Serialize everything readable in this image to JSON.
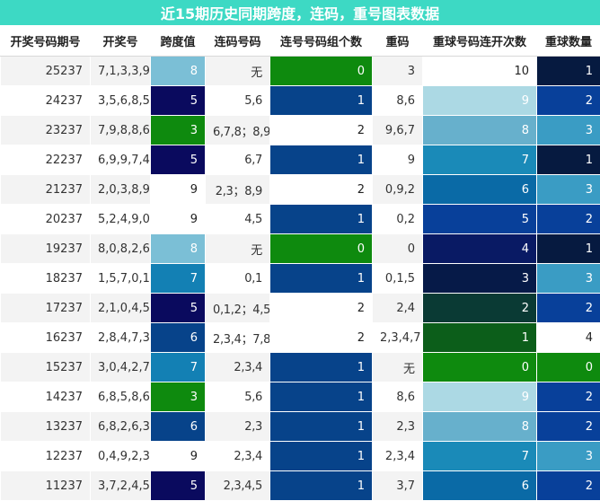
{
  "title": "近15期历史同期跨度，连码，重号图表数据",
  "headers": [
    "开奖号码期号",
    "开奖号",
    "跨度值",
    "连码号码",
    "连号号码组个数",
    "重码",
    "重球号码连开次数",
    "重球数量"
  ],
  "rows": [
    {
      "issue": "25237",
      "nums": "7,1,3,3,9",
      "span": "8",
      "lian": "无",
      "lian_count": "0",
      "chong": "3",
      "chong_times": "10",
      "chong_count": "1"
    },
    {
      "issue": "24237",
      "nums": "3,5,6,8,5",
      "span": "5",
      "lian": "5,6",
      "lian_count": "1",
      "chong": "8,6",
      "chong_times": "9",
      "chong_count": "2"
    },
    {
      "issue": "23237",
      "nums": "7,9,8,8,6",
      "span": "3",
      "lian": "6,7,8；8,9",
      "lian_count": "2",
      "chong": "9,6,7",
      "chong_times": "8",
      "chong_count": "3"
    },
    {
      "issue": "22237",
      "nums": "6,9,9,7,4",
      "span": "5",
      "lian": "6,7",
      "lian_count": "1",
      "chong": "9",
      "chong_times": "7",
      "chong_count": "1"
    },
    {
      "issue": "21237",
      "nums": "2,0,3,8,9",
      "span": "9",
      "lian": "2,3；8,9",
      "lian_count": "2",
      "chong": "0,9,2",
      "chong_times": "6",
      "chong_count": "3"
    },
    {
      "issue": "20237",
      "nums": "5,2,4,9,0",
      "span": "9",
      "lian": "4,5",
      "lian_count": "1",
      "chong": "0,2",
      "chong_times": "5",
      "chong_count": "2"
    },
    {
      "issue": "19237",
      "nums": "8,0,8,2,6",
      "span": "8",
      "lian": "无",
      "lian_count": "0",
      "chong": "0",
      "chong_times": "4",
      "chong_count": "1"
    },
    {
      "issue": "18237",
      "nums": "1,5,7,0,1",
      "span": "7",
      "lian": "0,1",
      "lian_count": "1",
      "chong": "0,1,5",
      "chong_times": "3",
      "chong_count": "3"
    },
    {
      "issue": "17237",
      "nums": "2,1,0,4,5",
      "span": "5",
      "lian": "0,1,2；4,5",
      "lian_count": "2",
      "chong": "2,4",
      "chong_times": "2",
      "chong_count": "2"
    },
    {
      "issue": "16237",
      "nums": "2,8,4,7,3",
      "span": "6",
      "lian": "2,3,4；7,8",
      "lian_count": "2",
      "chong": "2,3,4,7",
      "chong_times": "1",
      "chong_count": "4"
    },
    {
      "issue": "15237",
      "nums": "3,0,4,2,7",
      "span": "7",
      "lian": "2,3,4",
      "lian_count": "1",
      "chong": "无",
      "chong_times": "0",
      "chong_count": "0"
    },
    {
      "issue": "14237",
      "nums": "6,8,5,8,6",
      "span": "3",
      "lian": "5,6",
      "lian_count": "1",
      "chong": "8,6",
      "chong_times": "9",
      "chong_count": "2"
    },
    {
      "issue": "13237",
      "nums": "6,8,2,6,3",
      "span": "6",
      "lian": "2,3",
      "lian_count": "1",
      "chong": "2,3",
      "chong_times": "8",
      "chong_count": "2"
    },
    {
      "issue": "12237",
      "nums": "0,4,9,2,3",
      "span": "9",
      "lian": "2,3,4",
      "lian_count": "1",
      "chong": "2,3,4",
      "chong_times": "7",
      "chong_count": "3"
    },
    {
      "issue": "11237",
      "nums": "3,7,2,4,5",
      "span": "5",
      "lian": "2,3,4,5",
      "lian_count": "1",
      "chong": "3,7",
      "chong_times": "6",
      "chong_count": "2"
    }
  ],
  "colors": {
    "title_bg": "#3dd9c4",
    "span": {
      "3": "#0e8a0e",
      "5": "#0a0a5e",
      "6": "#07438a",
      "7": "#1380b4",
      "8": "#7bbfd6",
      "9": ""
    },
    "lian_count": {
      "0": "#0e8a0e",
      "1": "#07438a",
      "2": ""
    },
    "chong_times": {
      "0": "#0e8a0e",
      "1": "#0c5e1a",
      "2": "#0a3a34",
      "3": "#061a48",
      "4": "#091a64",
      "5": "#08409a",
      "6": "#0a6aa6",
      "7": "#1a8ab8",
      "8": "#67b0cc",
      "9": "#acd9e4",
      "10": ""
    },
    "chong_count": {
      "0": "#0e8a0e",
      "1": "#061a40",
      "2": "#08409a",
      "3": "#3a9cc4",
      "4": ""
    }
  }
}
